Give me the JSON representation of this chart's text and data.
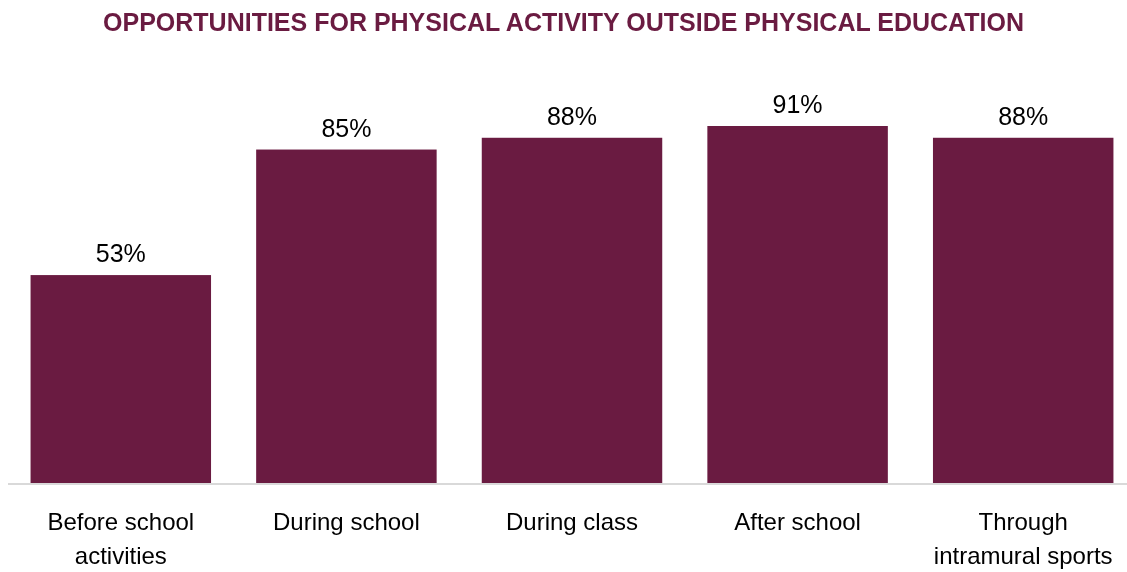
{
  "chart_data": {
    "type": "bar",
    "title": "OPPORTUNITIES FOR PHYSICAL ACTIVITY OUTSIDE PHYSICAL EDUCATION",
    "categories": [
      "Before school activities",
      "During school",
      "During class",
      "After school",
      "Through intramural sports"
    ],
    "values": [
      53,
      85,
      88,
      91,
      88
    ],
    "value_labels": [
      "53%",
      "85%",
      "88%",
      "91%",
      "88%"
    ],
    "color": "#6a1b41"
  }
}
